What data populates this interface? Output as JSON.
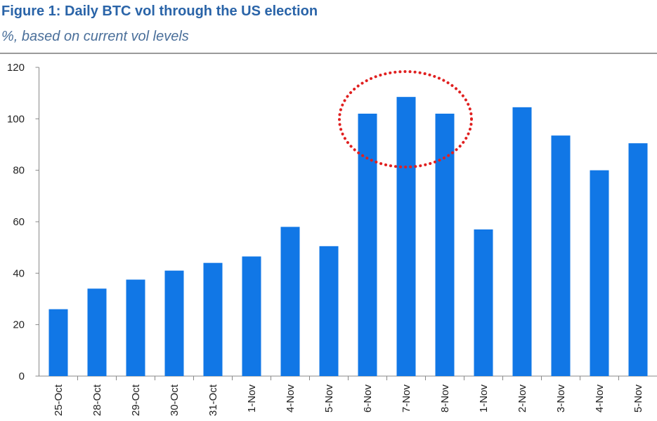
{
  "chart_data": {
    "type": "bar",
    "title": "Figure 1: Daily BTC vol through the US election",
    "subtitle": "%, based on current vol levels",
    "xlabel": "",
    "ylabel": "",
    "ylim": [
      0,
      120
    ],
    "yticks": [
      0,
      20,
      40,
      60,
      80,
      100,
      120
    ],
    "categories": [
      "25-Oct",
      "28-Oct",
      "29-Oct",
      "30-Oct",
      "31-Oct",
      "1-Nov",
      "4-Nov",
      "5-Nov",
      "6-Nov",
      "7-Nov",
      "8-Nov",
      "1-Nov",
      "2-Nov",
      "3-Nov",
      "4-Nov",
      "5-Nov"
    ],
    "values": [
      26,
      34,
      37.5,
      41,
      44,
      46.5,
      58,
      50.5,
      102,
      108.5,
      102,
      57,
      104.5,
      93.5,
      80,
      90.5
    ],
    "grid": false,
    "bar_color": "#1177e6",
    "annotation": {
      "type": "dotted-ellipse",
      "color": "#e02020",
      "highlights": [
        "6-Nov",
        "7-Nov",
        "8-Nov"
      ]
    }
  }
}
